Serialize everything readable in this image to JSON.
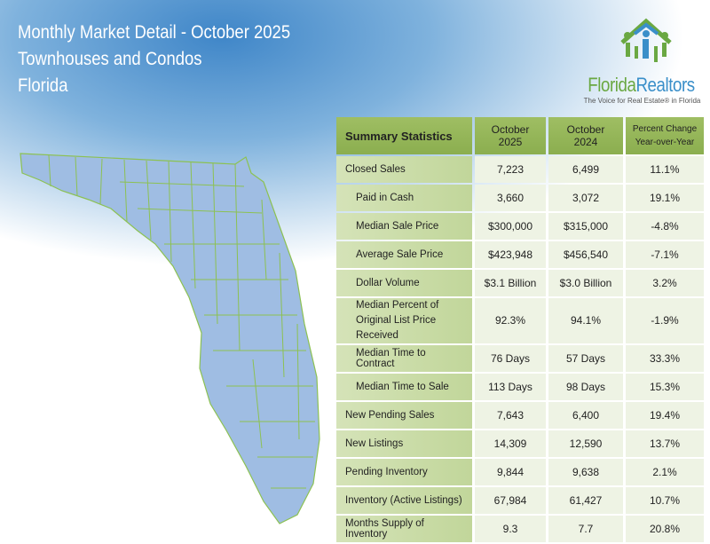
{
  "header": {
    "title": "Monthly Market Detail - October 2025",
    "subtitle": "Townhouses and Condos",
    "region": "Florida"
  },
  "logo": {
    "name_part1": "Florida",
    "name_part2": "Realtors",
    "tagline": "The Voice for Real Estate® in Florida"
  },
  "colors": {
    "header_green": "#97b85a",
    "label_green": "#c9dba8",
    "map_fill": "#9fbde3",
    "county_lines": "#8cc152"
  },
  "table": {
    "columns": [
      "Summary Statistics",
      "October 2025",
      "October 2024",
      "Percent Change Year-over-Year"
    ],
    "rows": [
      {
        "label": "Closed Sales",
        "indent": false,
        "v2025": "7,223",
        "v2024": "6,499",
        "pct": "11.1%"
      },
      {
        "label": "Paid in Cash",
        "indent": true,
        "v2025": "3,660",
        "v2024": "3,072",
        "pct": "19.1%"
      },
      {
        "label": "Median Sale Price",
        "indent": true,
        "v2025": "$300,000",
        "v2024": "$315,000",
        "pct": "-4.8%"
      },
      {
        "label": "Average Sale Price",
        "indent": true,
        "v2025": "$423,948",
        "v2024": "$456,540",
        "pct": "-7.1%"
      },
      {
        "label": "Dollar Volume",
        "indent": true,
        "v2025": "$3.1 Billion",
        "v2024": "$3.0 Billion",
        "pct": "3.2%"
      },
      {
        "label": "Median Percent of Original List Price Received",
        "indent": true,
        "v2025": "92.3%",
        "v2024": "94.1%",
        "pct": "-1.9%"
      },
      {
        "label": "Median Time to Contract",
        "indent": true,
        "v2025": "76 Days",
        "v2024": "57 Days",
        "pct": "33.3%"
      },
      {
        "label": "Median Time to Sale",
        "indent": true,
        "v2025": "113 Days",
        "v2024": "98 Days",
        "pct": "15.3%"
      },
      {
        "label": "New Pending Sales",
        "indent": false,
        "v2025": "7,643",
        "v2024": "6,400",
        "pct": "19.4%"
      },
      {
        "label": "New Listings",
        "indent": false,
        "v2025": "14,309",
        "v2024": "12,590",
        "pct": "13.7%"
      },
      {
        "label": "Pending Inventory",
        "indent": false,
        "v2025": "9,844",
        "v2024": "9,638",
        "pct": "2.1%"
      },
      {
        "label": "Inventory (Active Listings)",
        "indent": false,
        "v2025": "67,984",
        "v2024": "61,427",
        "pct": "10.7%"
      },
      {
        "label": "Months Supply of Inventory",
        "indent": false,
        "v2025": "9.3",
        "v2024": "7.7",
        "pct": "20.8%"
      }
    ]
  }
}
